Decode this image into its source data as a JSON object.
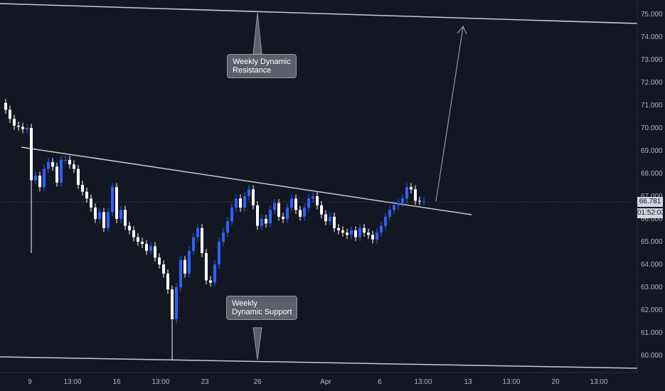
{
  "chart_data": {
    "type": "candlestick",
    "title": "",
    "xlabel": "",
    "ylabel": "",
    "ylim": [
      59.5,
      75.4
    ],
    "grid": false,
    "x_tick_labels": [
      "9",
      "13:00",
      "16",
      "13:00",
      "23",
      "26",
      "Apr",
      "6",
      "13:00",
      "13",
      "13:00",
      "20",
      "13:00"
    ],
    "y_tick_labels": [
      "60.000",
      "61.000",
      "62.000",
      "63.000",
      "64.000",
      "65.000",
      "66.000",
      "67.000",
      "68.000",
      "69.000",
      "70.000",
      "71.000",
      "72.000",
      "73.000",
      "74.000",
      "75.000"
    ],
    "series": [
      {
        "points": [
          [
            0,
            71.1
          ],
          [
            6,
            70.8
          ],
          [
            12,
            70.4
          ],
          [
            18,
            70.1
          ],
          [
            24,
            70.05
          ],
          [
            30,
            69.95
          ],
          [
            36,
            70.0
          ],
          [
            42,
            67.7
          ],
          [
            48,
            67.9
          ],
          [
            54,
            67.4
          ],
          [
            60,
            68.2
          ],
          [
            66,
            68.5
          ],
          [
            72,
            68.3
          ],
          [
            78,
            67.6
          ],
          [
            84,
            68.6
          ],
          [
            90,
            68.6
          ],
          [
            96,
            68.4
          ],
          [
            102,
            68.2
          ],
          [
            108,
            67.5
          ],
          [
            114,
            67.2
          ],
          [
            120,
            66.9
          ],
          [
            126,
            66.5
          ],
          [
            132,
            66.0
          ],
          [
            138,
            66.3
          ],
          [
            144,
            65.6
          ],
          [
            150,
            66.3
          ],
          [
            156,
            67.4
          ],
          [
            162,
            66.0
          ],
          [
            168,
            66.4
          ],
          [
            174,
            65.7
          ],
          [
            180,
            65.5
          ],
          [
            186,
            65.2
          ],
          [
            192,
            65.0
          ],
          [
            198,
            64.9
          ],
          [
            204,
            64.6
          ],
          [
            210,
            64.8
          ],
          [
            216,
            64.3
          ],
          [
            222,
            64.0
          ],
          [
            228,
            63.6
          ],
          [
            234,
            62.9
          ],
          [
            240,
            61.6
          ],
          [
            246,
            63.0
          ],
          [
            252,
            64.2
          ],
          [
            258,
            63.6
          ],
          [
            264,
            64.6
          ],
          [
            270,
            65.2
          ],
          [
            276,
            65.6
          ],
          [
            282,
            64.5
          ],
          [
            288,
            63.3
          ],
          [
            294,
            63.2
          ],
          [
            300,
            64.0
          ],
          [
            306,
            65.0
          ],
          [
            312,
            65.4
          ],
          [
            318,
            65.9
          ],
          [
            324,
            66.5
          ],
          [
            330,
            66.9
          ],
          [
            336,
            66.5
          ],
          [
            342,
            67.0
          ],
          [
            348,
            67.3
          ],
          [
            354,
            66.6
          ],
          [
            360,
            65.7
          ],
          [
            366,
            66.0
          ],
          [
            372,
            65.8
          ],
          [
            378,
            66.4
          ],
          [
            384,
            66.7
          ],
          [
            390,
            66.1
          ],
          [
            396,
            66.0
          ],
          [
            402,
            66.5
          ],
          [
            408,
            66.9
          ],
          [
            414,
            66.4
          ],
          [
            420,
            66.1
          ],
          [
            426,
            66.5
          ],
          [
            432,
            66.9
          ],
          [
            438,
            67.0
          ],
          [
            444,
            66.6
          ],
          [
            450,
            66.2
          ],
          [
            456,
            65.9
          ],
          [
            462,
            66.1
          ],
          [
            468,
            65.6
          ],
          [
            474,
            65.5
          ],
          [
            480,
            65.4
          ],
          [
            486,
            65.3
          ],
          [
            492,
            65.5
          ],
          [
            498,
            65.2
          ],
          [
            504,
            65.6
          ],
          [
            510,
            65.4
          ],
          [
            516,
            65.3
          ],
          [
            522,
            65.1
          ],
          [
            528,
            65.4
          ],
          [
            534,
            65.7
          ],
          [
            540,
            66.1
          ],
          [
            546,
            66.4
          ],
          [
            552,
            66.6
          ],
          [
            558,
            66.7
          ],
          [
            564,
            66.9
          ],
          [
            570,
            67.4
          ],
          [
            576,
            67.3
          ],
          [
            582,
            66.8
          ],
          [
            588,
            66.78
          ],
          [
            594,
            66.781
          ]
        ]
      }
    ],
    "last_price": "66.781",
    "countdown": "01:52:03",
    "annotations": [
      "Weekly Dynamic Resistance",
      "Weekly Dynamic Support"
    ],
    "colors": {
      "up": "#2962ff",
      "down": "#ffffff",
      "background": "#131722",
      "lines": "#b2b5be"
    }
  },
  "labels": {
    "resistance_line1": "Weekly Dynamic",
    "resistance_line2": "Resistance",
    "support_line1": "Weekly",
    "support_line2": "Dynamic Support"
  }
}
